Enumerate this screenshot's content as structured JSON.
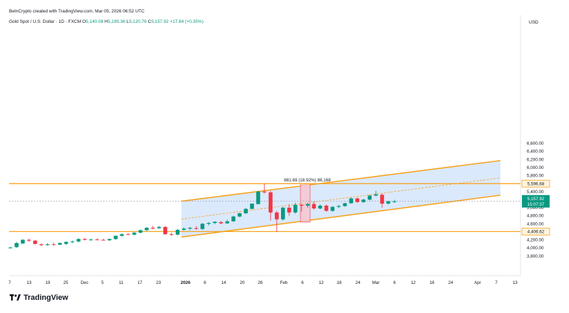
{
  "header": {
    "text": "BeInCrypto created with TradingView.com, Mar 05, 2026 06:52 UTC"
  },
  "legend": {
    "symbol": "Gold Spot / U.S. Dollar · 1D · FXCM",
    "o_label": "O",
    "o": "5,140.08",
    "h_label": "H",
    "h": "5,195.36",
    "l_label": "L",
    "l": "5,120.76",
    "c_label": "C",
    "c": "5,157.92",
    "change": "+17.84 (+0.35%)"
  },
  "currency": "USD",
  "brand": {
    "name": "TradingView",
    "logo_icon": "tradingview-logo-icon"
  },
  "colors": {
    "up": "#089981",
    "down": "#f23645",
    "level": "#f7a21b",
    "channel_fill": "#cfe2fb",
    "range_box": "#f4c7cf"
  },
  "price_tags": {
    "current": "5,157.92",
    "countdown": "15:07:37"
  },
  "level_labels": {
    "upper": "5,596.68",
    "lower": "4,406.62"
  },
  "range_annotation": "881.69 (18.92%) 88,168",
  "chart_data": {
    "type": "candlestick",
    "title": "Gold Spot / U.S. Dollar · 1D · FXCM",
    "ylim": [
      3700,
      6760
    ],
    "yticks": [
      3800,
      4000,
      4200,
      4400,
      4600,
      4800,
      5000,
      5200,
      5400,
      5600,
      5800,
      6000,
      6200,
      6400,
      6600
    ],
    "ytick_labels": [
      "3,800.00",
      "4,000.00",
      "4,200.00",
      "4,400.00",
      "4,600.00",
      "4,800.00",
      "5,000.00",
      "5,200.00",
      "5,400.00",
      "5,600.00",
      "5,800.00",
      "6,000.00",
      "6,200.00",
      "6,400.00",
      "6,600.00"
    ],
    "xtick_labels": [
      "7",
      "13",
      "19",
      "25",
      "Dec",
      "5",
      "11",
      "17",
      "23",
      "2026",
      "6",
      "14",
      "20",
      "26",
      "Feb",
      "6",
      "12",
      "18",
      "24",
      "Mar",
      "6",
      "12",
      "18",
      "24",
      "Apr",
      "7",
      "13"
    ],
    "horizontal_levels": [
      5596.68,
      4406.62
    ],
    "channel": {
      "upper": [
        [
          0,
          5160
        ],
        [
          26,
          6170
        ]
      ],
      "lower": [
        [
          0,
          4270
        ],
        [
          26,
          5310
        ]
      ],
      "middle": [
        [
          0,
          4715
        ],
        [
          26,
          5740
        ]
      ]
    },
    "last_price": 5157.92,
    "candles": [
      {
        "o": 4000,
        "h": 4030,
        "l": 3980,
        "c": 4010
      },
      {
        "o": 4020,
        "h": 4150,
        "l": 4000,
        "c": 4120
      },
      {
        "o": 4110,
        "h": 4220,
        "l": 4100,
        "c": 4200
      },
      {
        "o": 4200,
        "h": 4230,
        "l": 4150,
        "c": 4180
      },
      {
        "o": 4180,
        "h": 4200,
        "l": 4080,
        "c": 4100
      },
      {
        "o": 4090,
        "h": 4110,
        "l": 4040,
        "c": 4070
      },
      {
        "o": 4070,
        "h": 4120,
        "l": 4050,
        "c": 4090
      },
      {
        "o": 4090,
        "h": 4130,
        "l": 4060,
        "c": 4080
      },
      {
        "o": 4080,
        "h": 4140,
        "l": 4070,
        "c": 4120
      },
      {
        "o": 4100,
        "h": 4160,
        "l": 4070,
        "c": 4150
      },
      {
        "o": 4150,
        "h": 4180,
        "l": 4120,
        "c": 4160
      },
      {
        "o": 4160,
        "h": 4240,
        "l": 4140,
        "c": 4220
      },
      {
        "o": 4220,
        "h": 4250,
        "l": 4190,
        "c": 4200
      },
      {
        "o": 4200,
        "h": 4230,
        "l": 4180,
        "c": 4210
      },
      {
        "o": 4210,
        "h": 4240,
        "l": 4190,
        "c": 4200
      },
      {
        "o": 4200,
        "h": 4230,
        "l": 4180,
        "c": 4195
      },
      {
        "o": 4190,
        "h": 4230,
        "l": 4170,
        "c": 4220
      },
      {
        "o": 4220,
        "h": 4310,
        "l": 4200,
        "c": 4300
      },
      {
        "o": 4300,
        "h": 4360,
        "l": 4280,
        "c": 4340
      },
      {
        "o": 4340,
        "h": 4370,
        "l": 4320,
        "c": 4330
      },
      {
        "o": 4330,
        "h": 4390,
        "l": 4310,
        "c": 4380
      },
      {
        "o": 4380,
        "h": 4460,
        "l": 4360,
        "c": 4440
      },
      {
        "o": 4440,
        "h": 4520,
        "l": 4420,
        "c": 4500
      },
      {
        "o": 4500,
        "h": 4550,
        "l": 4460,
        "c": 4480
      },
      {
        "o": 4490,
        "h": 4550,
        "l": 4470,
        "c": 4520
      },
      {
        "o": 4520,
        "h": 4550,
        "l": 4330,
        "c": 4340
      },
      {
        "o": 4340,
        "h": 4380,
        "l": 4300,
        "c": 4330
      },
      {
        "o": 4330,
        "h": 4470,
        "l": 4310,
        "c": 4450
      },
      {
        "o": 4450,
        "h": 4510,
        "l": 4430,
        "c": 4480
      },
      {
        "o": 4480,
        "h": 4520,
        "l": 4440,
        "c": 4500
      },
      {
        "o": 4490,
        "h": 4540,
        "l": 4460,
        "c": 4470
      },
      {
        "o": 4470,
        "h": 4620,
        "l": 4450,
        "c": 4600
      },
      {
        "o": 4600,
        "h": 4640,
        "l": 4560,
        "c": 4620
      },
      {
        "o": 4620,
        "h": 4660,
        "l": 4590,
        "c": 4650
      },
      {
        "o": 4640,
        "h": 4670,
        "l": 4590,
        "c": 4610
      },
      {
        "o": 4610,
        "h": 4700,
        "l": 4600,
        "c": 4660
      },
      {
        "o": 4660,
        "h": 4800,
        "l": 4650,
        "c": 4780
      },
      {
        "o": 4780,
        "h": 4880,
        "l": 4760,
        "c": 4860
      },
      {
        "o": 4860,
        "h": 4990,
        "l": 4840,
        "c": 4970
      },
      {
        "o": 4970,
        "h": 5100,
        "l": 4960,
        "c": 5100
      },
      {
        "o": 5090,
        "h": 5420,
        "l": 5080,
        "c": 5400
      },
      {
        "o": 5400,
        "h": 5600,
        "l": 5350,
        "c": 5380
      },
      {
        "o": 5380,
        "h": 5420,
        "l": 4680,
        "c": 4880
      },
      {
        "o": 4880,
        "h": 4920,
        "l": 4400,
        "c": 4710
      },
      {
        "o": 4710,
        "h": 5020,
        "l": 4680,
        "c": 5000
      },
      {
        "o": 5000,
        "h": 5080,
        "l": 4800,
        "c": 4880
      },
      {
        "o": 4880,
        "h": 5120,
        "l": 4850,
        "c": 5070
      },
      {
        "o": 5070,
        "h": 5100,
        "l": 4900,
        "c": 5050
      },
      {
        "o": 5050,
        "h": 5120,
        "l": 5000,
        "c": 5090
      },
      {
        "o": 5090,
        "h": 5150,
        "l": 4950,
        "c": 4980
      },
      {
        "o": 4980,
        "h": 5080,
        "l": 4960,
        "c": 5050
      },
      {
        "o": 5050,
        "h": 5080,
        "l": 4900,
        "c": 4920
      },
      {
        "o": 4920,
        "h": 5040,
        "l": 4900,
        "c": 5020
      },
      {
        "o": 5020,
        "h": 5070,
        "l": 4990,
        "c": 5040
      },
      {
        "o": 5040,
        "h": 5120,
        "l": 5020,
        "c": 5110
      },
      {
        "o": 5110,
        "h": 5250,
        "l": 5100,
        "c": 5230
      },
      {
        "o": 5230,
        "h": 5250,
        "l": 5120,
        "c": 5140
      },
      {
        "o": 5140,
        "h": 5220,
        "l": 5120,
        "c": 5200
      },
      {
        "o": 5200,
        "h": 5320,
        "l": 5180,
        "c": 5300
      },
      {
        "o": 5300,
        "h": 5420,
        "l": 5280,
        "c": 5330
      },
      {
        "o": 5320,
        "h": 5350,
        "l": 5000,
        "c": 5100
      },
      {
        "o": 5100,
        "h": 5170,
        "l": 5080,
        "c": 5160
      },
      {
        "o": 5140,
        "h": 5195,
        "l": 5120,
        "c": 5158
      }
    ]
  }
}
